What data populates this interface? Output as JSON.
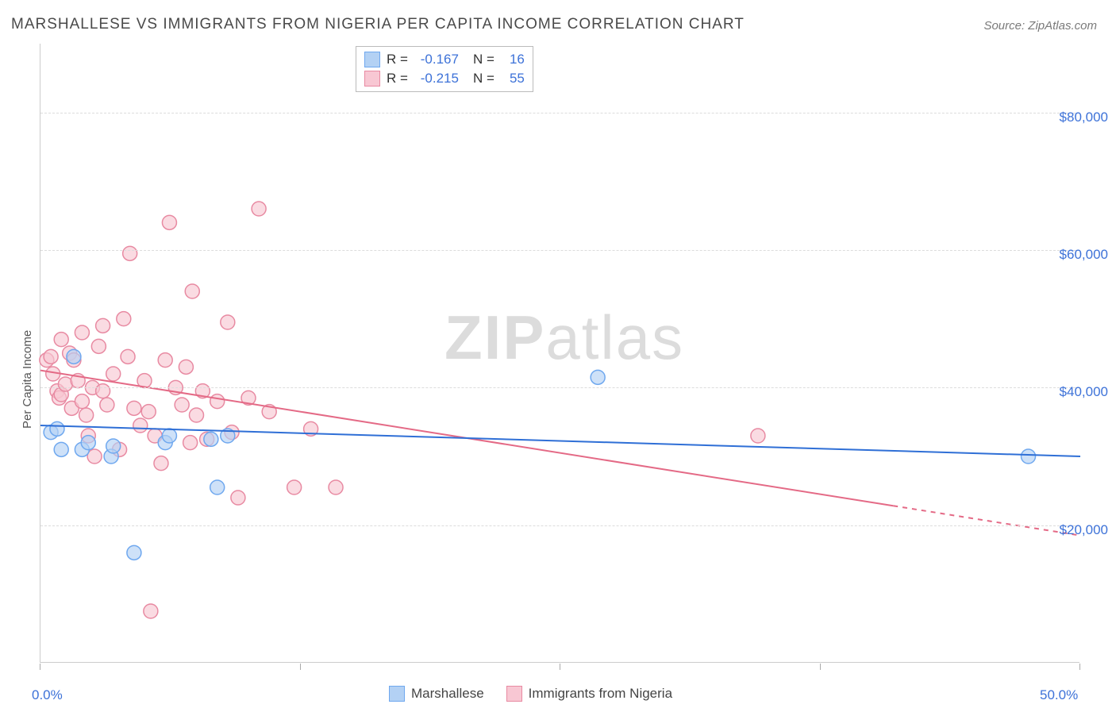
{
  "title": "MARSHALLESE VS IMMIGRANTS FROM NIGERIA PER CAPITA INCOME CORRELATION CHART",
  "source": "Source: ZipAtlas.com",
  "watermark_zip": "ZIP",
  "watermark_atlas": "atlas",
  "ylabel": "Per Capita Income",
  "chart": {
    "type": "scatter",
    "xlim": [
      0,
      50
    ],
    "ylim": [
      0,
      90000
    ],
    "yticks": [
      {
        "v": 20000,
        "label": "$20,000"
      },
      {
        "v": 40000,
        "label": "$40,000"
      },
      {
        "v": 60000,
        "label": "$60,000"
      },
      {
        "v": 80000,
        "label": "$80,000"
      }
    ],
    "xticks": [
      {
        "v": 0,
        "label": "0.0%"
      },
      {
        "v": 50,
        "label": "50.0%"
      }
    ],
    "xtick_marks": [
      0,
      12.5,
      25,
      37.5,
      50
    ],
    "background_color": "#ffffff",
    "grid_color": "#dcdcdc",
    "axis_color": "#cccccc",
    "tick_label_color": "#3d72d8",
    "ylabel_color": "#555555",
    "marker_radius": 9,
    "marker_stroke_width": 1.5,
    "trend_stroke_width": 2,
    "series": {
      "blue": {
        "name": "Marshallese",
        "fill": "#b3d1f4",
        "stroke": "#6fa8ef",
        "trend_color": "#2f6fd6",
        "R": "-0.167",
        "N": "16",
        "points": [
          [
            0.5,
            33500
          ],
          [
            0.8,
            34000
          ],
          [
            1.0,
            31000
          ],
          [
            1.6,
            44500
          ],
          [
            2.0,
            31000
          ],
          [
            2.3,
            32000
          ],
          [
            3.4,
            30000
          ],
          [
            3.5,
            31500
          ],
          [
            4.5,
            16000
          ],
          [
            6.0,
            32000
          ],
          [
            6.2,
            33000
          ],
          [
            8.2,
            32500
          ],
          [
            8.5,
            25500
          ],
          [
            9.0,
            33000
          ],
          [
            26.8,
            41500
          ],
          [
            47.5,
            30000
          ]
        ],
        "trend": {
          "y0": 34500,
          "y50": 30000
        }
      },
      "pink": {
        "name": "Immigrants from Nigeria",
        "fill": "#f8c7d3",
        "stroke": "#e88aa2",
        "trend_color": "#e46a86",
        "R": "-0.215",
        "N": "55",
        "points": [
          [
            0.3,
            44000
          ],
          [
            0.5,
            44500
          ],
          [
            0.6,
            42000
          ],
          [
            0.8,
            39500
          ],
          [
            0.9,
            38500
          ],
          [
            1.0,
            47000
          ],
          [
            1.0,
            39000
          ],
          [
            1.2,
            40500
          ],
          [
            1.4,
            45000
          ],
          [
            1.5,
            37000
          ],
          [
            1.6,
            44000
          ],
          [
            1.8,
            41000
          ],
          [
            2.0,
            48000
          ],
          [
            2.0,
            38000
          ],
          [
            2.2,
            36000
          ],
          [
            2.3,
            33000
          ],
          [
            2.5,
            40000
          ],
          [
            2.6,
            30000
          ],
          [
            2.8,
            46000
          ],
          [
            3.0,
            49000
          ],
          [
            3.0,
            39500
          ],
          [
            3.2,
            37500
          ],
          [
            3.5,
            42000
          ],
          [
            3.8,
            31000
          ],
          [
            4.0,
            50000
          ],
          [
            4.2,
            44500
          ],
          [
            4.3,
            59500
          ],
          [
            4.5,
            37000
          ],
          [
            4.8,
            34500
          ],
          [
            5.0,
            41000
          ],
          [
            5.2,
            36500
          ],
          [
            5.3,
            7500
          ],
          [
            5.5,
            33000
          ],
          [
            5.8,
            29000
          ],
          [
            6.0,
            44000
          ],
          [
            6.2,
            64000
          ],
          [
            6.5,
            40000
          ],
          [
            6.8,
            37500
          ],
          [
            7.0,
            43000
          ],
          [
            7.2,
            32000
          ],
          [
            7.3,
            54000
          ],
          [
            7.5,
            36000
          ],
          [
            7.8,
            39500
          ],
          [
            8.0,
            32500
          ],
          [
            8.5,
            38000
          ],
          [
            9.0,
            49500
          ],
          [
            9.2,
            33500
          ],
          [
            9.5,
            24000
          ],
          [
            10.0,
            38500
          ],
          [
            10.5,
            66000
          ],
          [
            11.0,
            36500
          ],
          [
            12.2,
            25500
          ],
          [
            13.0,
            34000
          ],
          [
            14.2,
            25500
          ],
          [
            34.5,
            33000
          ]
        ],
        "trend": {
          "y0": 42500,
          "y50": 18500,
          "solid_until_x": 41
        }
      }
    }
  },
  "legend_top": {
    "r_label": "R =",
    "n_label": "N ="
  },
  "legend_bottom": {
    "items": [
      {
        "swatch": "blue",
        "label": "Marshallese"
      },
      {
        "swatch": "pink",
        "label": "Immigrants from Nigeria"
      }
    ]
  }
}
